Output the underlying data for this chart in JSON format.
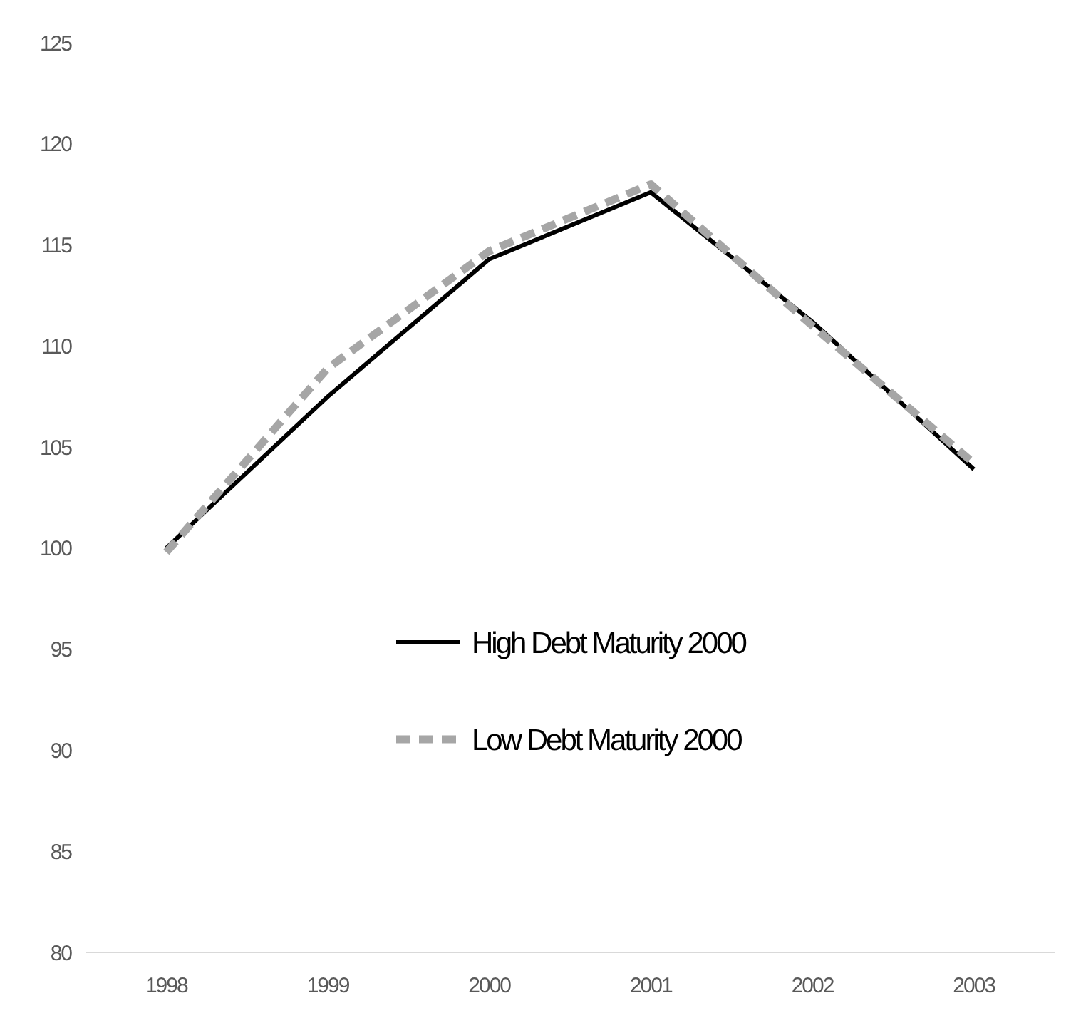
{
  "chart_data": {
    "type": "line",
    "categories": [
      "1998",
      "1999",
      "2000",
      "2001",
      "2002",
      "2003"
    ],
    "series": [
      {
        "name": "High Debt Maturity 2000",
        "color": "#000000",
        "line_style": "solid",
        "values": [
          100,
          107.5,
          114.3,
          117.6,
          111.2,
          103.9
        ]
      },
      {
        "name": "Low Debt Maturity 2000",
        "color": "#a6a6a6",
        "line_style": "dashed",
        "values": [
          99.8,
          108.9,
          114.7,
          118.0,
          111.0,
          104.2
        ]
      }
    ],
    "ylim": [
      80,
      125
    ],
    "yticks": [
      80,
      85,
      90,
      95,
      100,
      105,
      110,
      115,
      120,
      125
    ],
    "grid": false,
    "legend": "center"
  }
}
